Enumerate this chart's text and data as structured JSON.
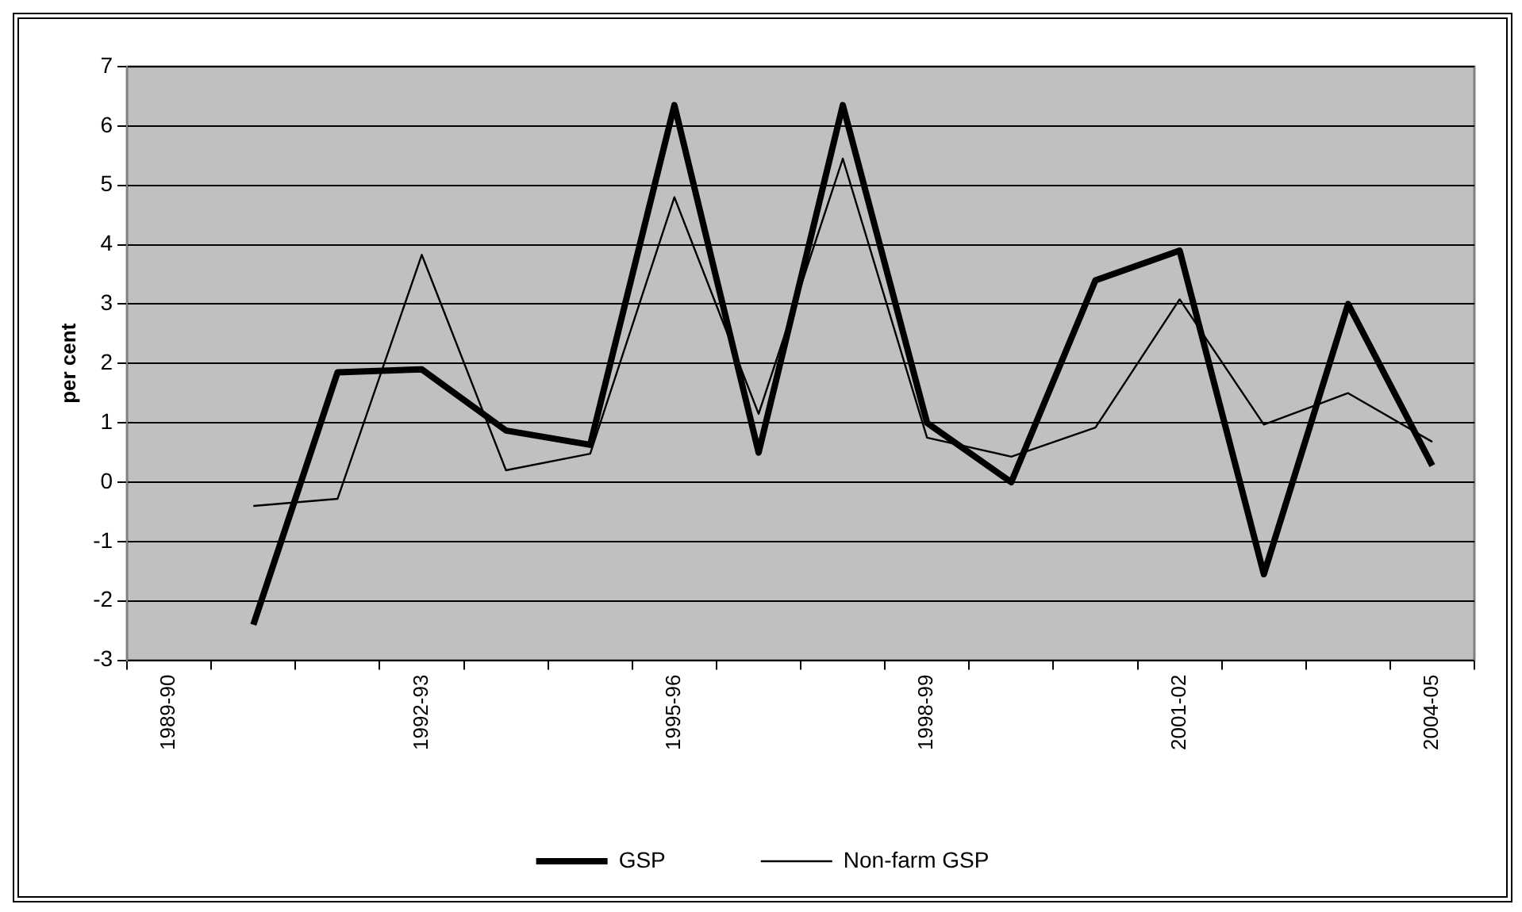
{
  "chart_data": {
    "type": "line",
    "ylabel": "per cent",
    "categories": [
      "1989-90",
      null,
      null,
      "1992-93",
      null,
      null,
      "1995-96",
      null,
      null,
      "1998-99",
      null,
      null,
      "2001-02",
      null,
      null,
      "2004-05"
    ],
    "series": [
      {
        "name": "GSP",
        "color": "#000000",
        "values": [
          null,
          -2.4,
          1.85,
          1.9,
          0.87,
          0.63,
          6.35,
          0.5,
          6.35,
          1.0,
          0.0,
          3.4,
          3.9,
          -1.55,
          3.0,
          0.28
        ]
      },
      {
        "name": "Non-farm GSP",
        "color": "#000000",
        "values": [
          null,
          -0.4,
          -0.28,
          3.83,
          0.2,
          0.48,
          4.8,
          1.15,
          5.45,
          0.75,
          0.43,
          0.92,
          3.08,
          0.97,
          1.5,
          0.68
        ]
      }
    ],
    "ylim": [
      -3,
      7
    ],
    "yticks": [
      -3,
      -2,
      -1,
      0,
      1,
      2,
      3,
      4,
      5,
      6,
      7
    ],
    "grid": "y",
    "legend": "bottom",
    "marker": "none",
    "line_style": "solid"
  }
}
